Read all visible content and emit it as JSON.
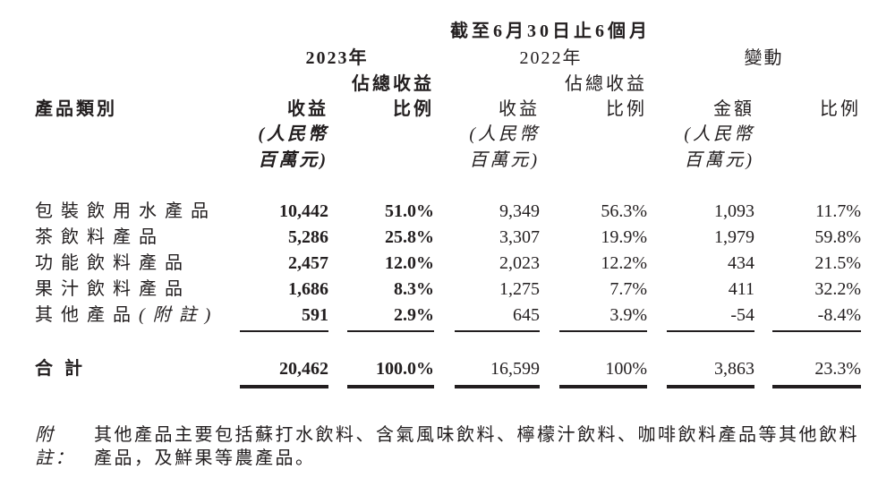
{
  "header": {
    "period": "截至6月30日止6個月",
    "year_2023": "2023年",
    "year_2022": "2022年",
    "change": "變動",
    "share_2023": "佔總收益",
    "share_2022": "佔總收益",
    "category": "產品類別",
    "revenue_2023": "收益",
    "ratio_2023": "比例",
    "revenue_2022": "收益",
    "ratio_2022": "比例",
    "amount": "金額",
    "ratio_change": "比例",
    "rmb_note_line1": "(人民幣",
    "rmb_note_line2": "百萬元)"
  },
  "table": {
    "rows": [
      {
        "label": "包裝飲用水產品",
        "note": "",
        "rev_2023": "10,442",
        "share_2023": "51.0%",
        "rev_2022": "9,349",
        "share_2022": "56.3%",
        "chg_amount": "1,093",
        "chg_pct": "11.7%"
      },
      {
        "label": "茶飲料產品",
        "note": "",
        "rev_2023": "5,286",
        "share_2023": "25.8%",
        "rev_2022": "3,307",
        "share_2022": "19.9%",
        "chg_amount": "1,979",
        "chg_pct": "59.8%"
      },
      {
        "label": "功能飲料產品",
        "note": "",
        "rev_2023": "2,457",
        "share_2023": "12.0%",
        "rev_2022": "2,023",
        "share_2022": "12.2%",
        "chg_amount": "434",
        "chg_pct": "21.5%"
      },
      {
        "label": "果汁飲料產品",
        "note": "",
        "rev_2023": "1,686",
        "share_2023": "8.3%",
        "rev_2022": "1,275",
        "share_2022": "7.7%",
        "chg_amount": "411",
        "chg_pct": "32.2%"
      },
      {
        "label": "其他產品",
        "note": "(附註)",
        "rev_2023": "591",
        "share_2023": "2.9%",
        "rev_2022": "645",
        "share_2022": "3.9%",
        "chg_amount": "-54",
        "chg_pct": "-8.4%"
      }
    ],
    "total": {
      "label": "合計",
      "rev_2023": "20,462",
      "share_2023": "100.0%",
      "rev_2022": "16,599",
      "share_2022": "100%",
      "chg_amount": "3,863",
      "chg_pct": "23.3%"
    }
  },
  "footnote": {
    "label": "附註：",
    "lines": [
      "其他產品主要包括蘇打水飲料、含氣風味飲料、檸檬汁飲料、咖啡飲料產品等其他飲料",
      "產品，及鮮果等農產品。"
    ]
  },
  "colors": {
    "text": "#221e1f",
    "background": "#ffffff"
  }
}
